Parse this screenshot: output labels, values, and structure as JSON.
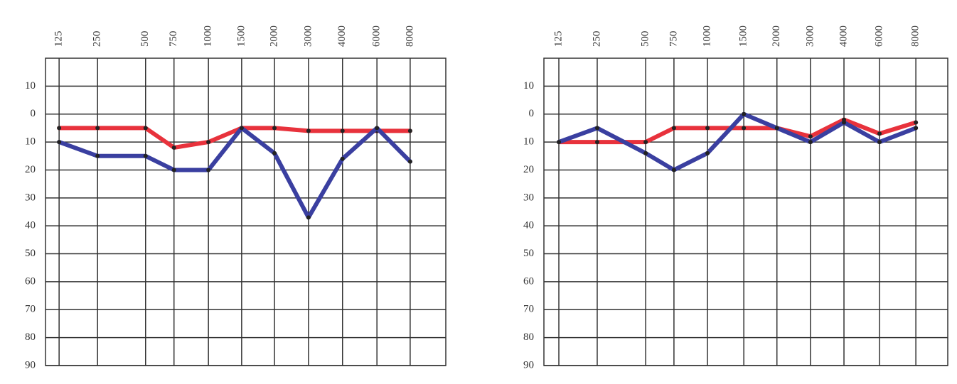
{
  "chart_data": [
    {
      "type": "line",
      "categories": [
        "125",
        "250",
        "500",
        "750",
        "1000",
        "1500",
        "2000",
        "3000",
        "4000",
        "6000",
        "8000"
      ],
      "ylim": [
        -20,
        90
      ],
      "y_inverted": true,
      "yticks": [
        {
          "value": -10,
          "label": "10"
        },
        0,
        {
          "value": 10,
          "label": "10"
        },
        20,
        30,
        40,
        50,
        60,
        70,
        80,
        90
      ],
      "grid": true,
      "series": [
        {
          "color": "#e8323c",
          "values": [
            5,
            5,
            5,
            12,
            10,
            5,
            5,
            6,
            6,
            6,
            6
          ]
        },
        {
          "color": "#3a3fa0",
          "values": [
            10,
            15,
            15,
            20,
            20,
            5,
            14,
            37,
            16,
            5,
            17
          ]
        }
      ]
    },
    {
      "type": "line",
      "categories": [
        "125",
        "250",
        "500",
        "750",
        "1000",
        "1500",
        "2000",
        "3000",
        "4000",
        "6000",
        "8000"
      ],
      "ylim": [
        -20,
        90
      ],
      "y_inverted": true,
      "yticks": [
        {
          "value": -10,
          "label": "10"
        },
        0,
        {
          "value": 10,
          "label": "10"
        },
        20,
        30,
        40,
        50,
        60,
        70,
        80,
        90
      ],
      "grid": true,
      "series": [
        {
          "color": "#e8323c",
          "values": [
            10,
            10,
            10,
            5,
            5,
            5,
            5,
            8,
            2,
            7,
            3
          ]
        },
        {
          "color": "#3a3fa0",
          "values": [
            10,
            5,
            14,
            20,
            14,
            0,
            5,
            10,
            3,
            10,
            5
          ]
        }
      ]
    }
  ]
}
